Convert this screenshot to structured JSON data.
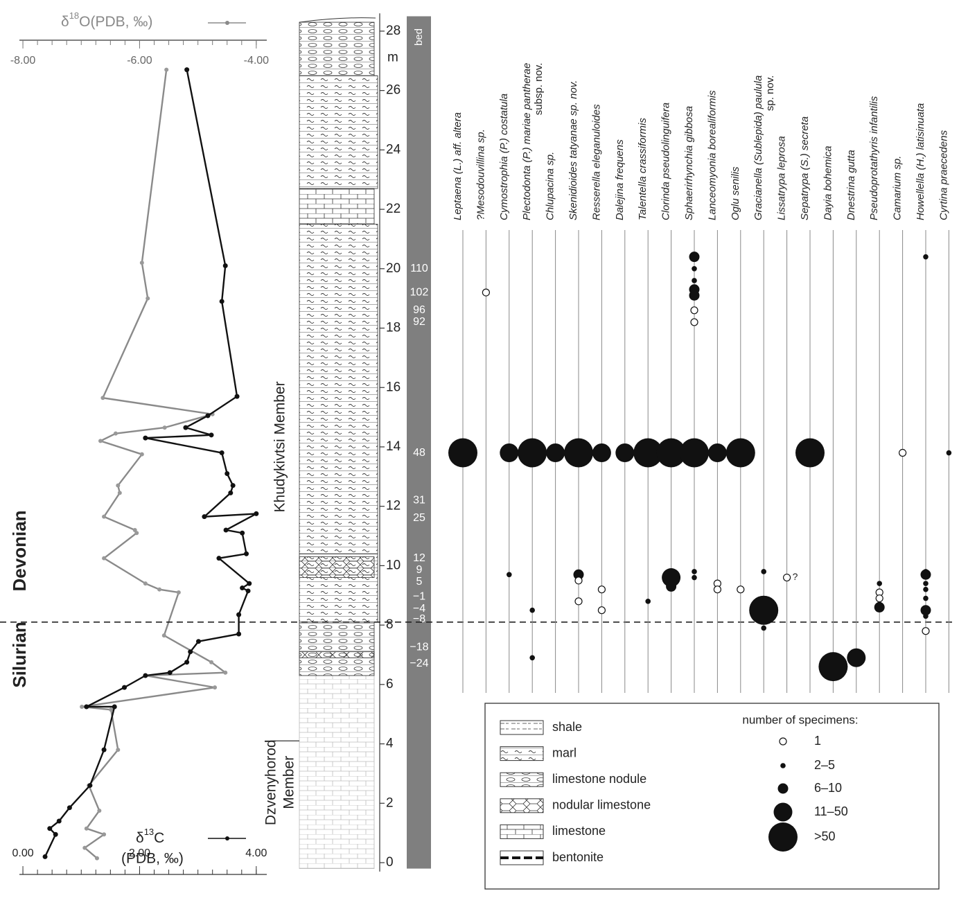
{
  "chart_data": [
    {
      "type": "line",
      "ylim": [
        -0.3,
        28.6
      ],
      "axes": {
        "top": {
          "title": {
            "prefix": "δ",
            "sup": "18",
            "rest": "O(PDB, ‰)"
          },
          "xlim": [
            -8.06,
            -3.82
          ],
          "minor_step": 0.25,
          "xticks": [
            {
              "value": -8,
              "label": "-8.00"
            },
            {
              "value": -6,
              "label": "-6.00"
            },
            {
              "value": -4,
              "label": "-4.00"
            }
          ]
        },
        "bottom": {
          "title": {
            "prefix": "δ",
            "sup": "13",
            "rest": "C",
            "line2": "(PDB, ‰)"
          },
          "xlim": [
            -0.06,
            4.18
          ],
          "minor_step": 0.25,
          "xticks": [
            {
              "value": 0,
              "label": "0.00"
            },
            {
              "value": 2,
              "label": "2.00"
            },
            {
              "value": 4,
              "label": "4.00"
            }
          ]
        }
      },
      "series": [
        {
          "axis": "top",
          "color": "#8a8a8a",
          "values": [
            -5.54,
            -5.96,
            -5.86,
            -6.63,
            -4.75,
            -5.57,
            -6.41,
            -6.67,
            -5.96,
            -6.37,
            -6.34,
            -6.61,
            -6.08,
            -6.05,
            -6.61,
            -5.9,
            -5.66,
            -5.33,
            -5.58,
            -4.77,
            -4.53,
            -5.9,
            -4.71,
            -6.99,
            -6.49,
            -6.37,
            -6.87,
            -6.69,
            -6.91,
            -6.61,
            -6.94,
            -6.73
          ],
          "heights": [
            26.7,
            20.2,
            19.0,
            15.65,
            15.1,
            14.65,
            14.45,
            14.2,
            13.75,
            12.7,
            12.45,
            11.65,
            11.2,
            11.1,
            10.25,
            9.4,
            9.2,
            9.1,
            7.65,
            6.75,
            6.4,
            6.3,
            5.9,
            5.25,
            5.15,
            3.8,
            2.6,
            1.75,
            1.15,
            0.95,
            0.5,
            0.15
          ]
        },
        {
          "axis": "bottom",
          "color": "#111111",
          "values": [
            2.81,
            3.47,
            3.41,
            3.67,
            3.17,
            2.79,
            3.23,
            2.1,
            3.41,
            3.5,
            3.6,
            3.56,
            3.11,
            4.0,
            3.48,
            3.76,
            3.83,
            3.36,
            3.88,
            3.76,
            3.86,
            3.7,
            3.7,
            3.01,
            2.87,
            2.81,
            2.52,
            2.1,
            1.74,
            1.09,
            1.57,
            1.39,
            1.15,
            0.8,
            0.62,
            0.46,
            0.56,
            0.38
          ],
          "heights": [
            26.7,
            20.1,
            18.9,
            15.7,
            15.05,
            14.65,
            14.4,
            14.3,
            13.8,
            13.1,
            12.7,
            12.45,
            11.65,
            11.75,
            11.2,
            11.1,
            10.4,
            10.25,
            9.4,
            9.25,
            9.15,
            8.35,
            7.7,
            7.45,
            7.1,
            6.75,
            6.4,
            6.3,
            5.9,
            5.25,
            5.25,
            3.8,
            2.6,
            1.85,
            1.4,
            1.15,
            0.95,
            0.2
          ]
        }
      ],
      "periods": [
        {
          "name": "Devonian",
          "height": 10.5
        },
        {
          "name": "Silurian",
          "height": 7.0
        }
      ],
      "boundary": 8.1
    },
    {
      "type": "scatter",
      "ylim": [
        -0.3,
        28.6
      ],
      "yticks": [
        0,
        2,
        4,
        6,
        8,
        10,
        12,
        14,
        16,
        18,
        20,
        22,
        24,
        26,
        28
      ],
      "yunit": "m",
      "bed_title": "bed",
      "beds": [
        {
          "label": "110",
          "height": 20.0
        },
        {
          "label": "102",
          "height": 19.2
        },
        {
          "label": "96",
          "height": 18.6
        },
        {
          "label": "92",
          "height": 18.2
        },
        {
          "label": "48",
          "height": 13.8
        },
        {
          "label": "31",
          "height": 12.2
        },
        {
          "label": "25",
          "height": 11.6
        },
        {
          "label": "12",
          "height": 10.25
        },
        {
          "label": "9",
          "height": 9.85
        },
        {
          "label": "5",
          "height": 9.45
        },
        {
          "label": "−1",
          "height": 8.95
        },
        {
          "label": "−4",
          "height": 8.55
        },
        {
          "label": "−8",
          "height": 8.2
        },
        {
          "label": "−18",
          "height": 7.25
        },
        {
          "label": "−24",
          "height": 6.7
        }
      ],
      "members": [
        {
          "lines": [
            "Khudykivtsi Member"
          ],
          "height": 14.0
        },
        {
          "lines": [
            "Dzvenyhorod",
            "Member"
          ],
          "height": 2.7
        }
      ],
      "taxa": [
        {
          "name": "Leptaena (L.) aff. altera",
          "heights": [
            13.8
          ],
          "sizes": [
            ">50"
          ]
        },
        {
          "name": "?Mesodouvillina sp.",
          "heights": [
            19.2
          ],
          "sizes": [
            "1"
          ]
        },
        {
          "name": "Cymostrophia (P.) costatula",
          "heights": [
            13.8,
            9.7
          ],
          "sizes": [
            "11–50",
            "2–5"
          ]
        },
        {
          "name": "Plectodonta (P.) mariae pantherae",
          "note": "subsp. nov.",
          "heights": [
            13.8,
            8.5,
            6.9
          ],
          "sizes": [
            ">50",
            "2–5",
            "2–5"
          ]
        },
        {
          "name": "Chlupacina sp.",
          "heights": [
            13.8
          ],
          "sizes": [
            "11–50"
          ]
        },
        {
          "name": "Skenidioides tatyanae sp. nov.",
          "heights": [
            13.8,
            9.7,
            9.5,
            8.8
          ],
          "sizes": [
            ">50",
            "6–10",
            "1",
            "1"
          ]
        },
        {
          "name": "Resserella eleganuloides",
          "heights": [
            13.8,
            9.2,
            8.5
          ],
          "sizes": [
            "11–50",
            "1",
            "1"
          ]
        },
        {
          "name": "Dalejina frequens",
          "heights": [
            13.8
          ],
          "sizes": [
            "11–50"
          ]
        },
        {
          "name": "Talentella crassiformis",
          "heights": [
            13.8,
            8.8
          ],
          "sizes": [
            ">50",
            "2–5"
          ]
        },
        {
          "name": "Clorinda pseudolinguifera",
          "heights": [
            13.8,
            9.6,
            9.3
          ],
          "sizes": [
            ">50",
            "11–50",
            "6–10"
          ]
        },
        {
          "name": "Sphaerirhynchia gibbosa",
          "heights": [
            20.4,
            20.0,
            19.6,
            19.3,
            19.1,
            18.6,
            18.2,
            13.8,
            9.8,
            9.6
          ],
          "sizes": [
            "6–10",
            "2–5",
            "2–5",
            "6–10",
            "6–10",
            "1",
            "1",
            ">50",
            "2–5",
            "2–5"
          ]
        },
        {
          "name": "Lanceomyonia borealiformis",
          "heights": [
            13.8,
            9.4,
            9.2
          ],
          "sizes": [
            "11–50",
            "1",
            "1"
          ]
        },
        {
          "name": "Oglu senilis",
          "heights": [
            13.8,
            9.2
          ],
          "sizes": [
            ">50",
            "1"
          ]
        },
        {
          "name": "Gracianella (Sublepida) paulula",
          "note": "sp. nov.",
          "heights": [
            9.8,
            8.5,
            7.9
          ],
          "sizes": [
            "2–5",
            ">50",
            "2–5"
          ]
        },
        {
          "name": "Lissatrypa leprosa",
          "heights": [
            9.6
          ],
          "sizes": [
            "1"
          ],
          "query": "?"
        },
        {
          "name": "Sepatrypa (S.) secreta",
          "heights": [
            13.8
          ],
          "sizes": [
            ">50"
          ]
        },
        {
          "name": "Dayia bohemica",
          "heights": [
            6.6
          ],
          "sizes": [
            ">50"
          ]
        },
        {
          "name": "Dnestrina gutta",
          "heights": [
            6.9
          ],
          "sizes": [
            "11–50"
          ]
        },
        {
          "name": "Pseudoprotathyris infantilis",
          "heights": [
            9.4,
            9.1,
            8.9,
            8.7,
            8.6
          ],
          "sizes": [
            "2–5",
            "1",
            "1",
            "2–5",
            "6–10"
          ]
        },
        {
          "name": "Camarium sp.",
          "heights": [
            13.8
          ],
          "sizes": [
            "1"
          ]
        },
        {
          "name": "Howellella (H.) latisinuata",
          "heights": [
            20.4,
            9.8,
            9.7,
            9.4,
            9.2,
            8.9,
            8.5,
            8.3,
            7.8
          ],
          "sizes": [
            "2–5",
            "2–5",
            "6–10",
            "2–5",
            "2–5",
            "2–5",
            "6–10",
            "2–5",
            "1"
          ]
        },
        {
          "name": "Cyrtina praecedens",
          "heights": [
            13.8
          ],
          "sizes": [
            "2–5"
          ]
        }
      ],
      "lithology_legend": [
        "shale",
        "marl",
        "limestone nodule",
        "nodular limestone",
        "limestone",
        "bentonite"
      ],
      "size_legend": {
        "title": "number of specimens:",
        "labels": [
          "1",
          "2–5",
          "6–10",
          "11–50",
          ">50"
        ]
      }
    }
  ]
}
